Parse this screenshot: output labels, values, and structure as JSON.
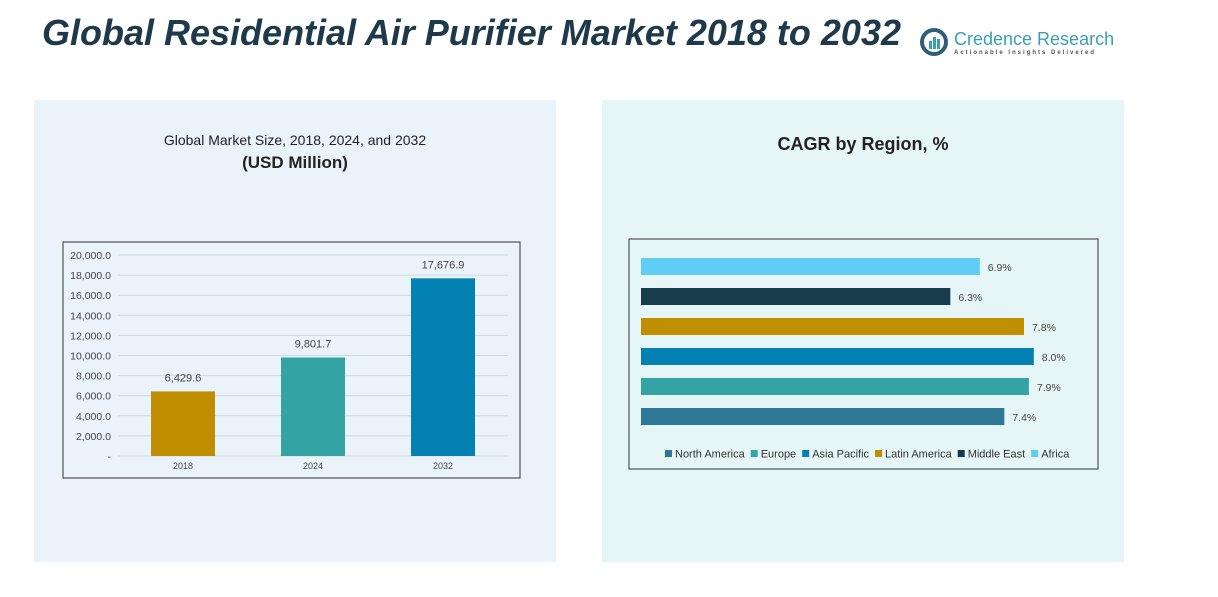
{
  "title": "Global Residential Air Purifier Market 2018 to 2032",
  "logo": {
    "name": "Credence Research",
    "tagline": "Actionable Insights Delivered"
  },
  "chart_data": [
    {
      "type": "bar",
      "title": "Global Market Size, 2018, 2024, and 2032",
      "subtitle": "(USD Million)",
      "categories": [
        "2018",
        "2024",
        "2032"
      ],
      "values": [
        6429.6,
        9801.7,
        17676.9
      ],
      "labels": [
        "6,429.6",
        "9,801.7",
        "17,676.9"
      ],
      "colors": [
        "#c08f00",
        "#33a3a3",
        "#0481b3"
      ],
      "ylim": [
        0,
        20000
      ],
      "yticks": [
        "-",
        "2,000.0",
        "4,000.0",
        "6,000.0",
        "8,000.0",
        "10,000.0",
        "12,000.0",
        "14,000.0",
        "16,000.0",
        "18,000.0",
        "20,000.0"
      ],
      "grid": true
    },
    {
      "type": "bar",
      "orientation": "horizontal",
      "title": "CAGR by Region, %",
      "categories": [
        "North America",
        "Europe",
        "Asia Pacific",
        "Latin America",
        "Middle East",
        "Africa"
      ],
      "values": [
        7.4,
        7.9,
        8.0,
        7.8,
        6.3,
        6.9
      ],
      "labels": [
        "7.4%",
        "7.9%",
        "8.0%",
        "7.8%",
        "6.3%",
        "6.9%"
      ],
      "colors": [
        "#2e7898",
        "#33a3a3",
        "#0481b3",
        "#c08f00",
        "#173c4c",
        "#5fcdf5"
      ],
      "legend": "bottom"
    }
  ]
}
